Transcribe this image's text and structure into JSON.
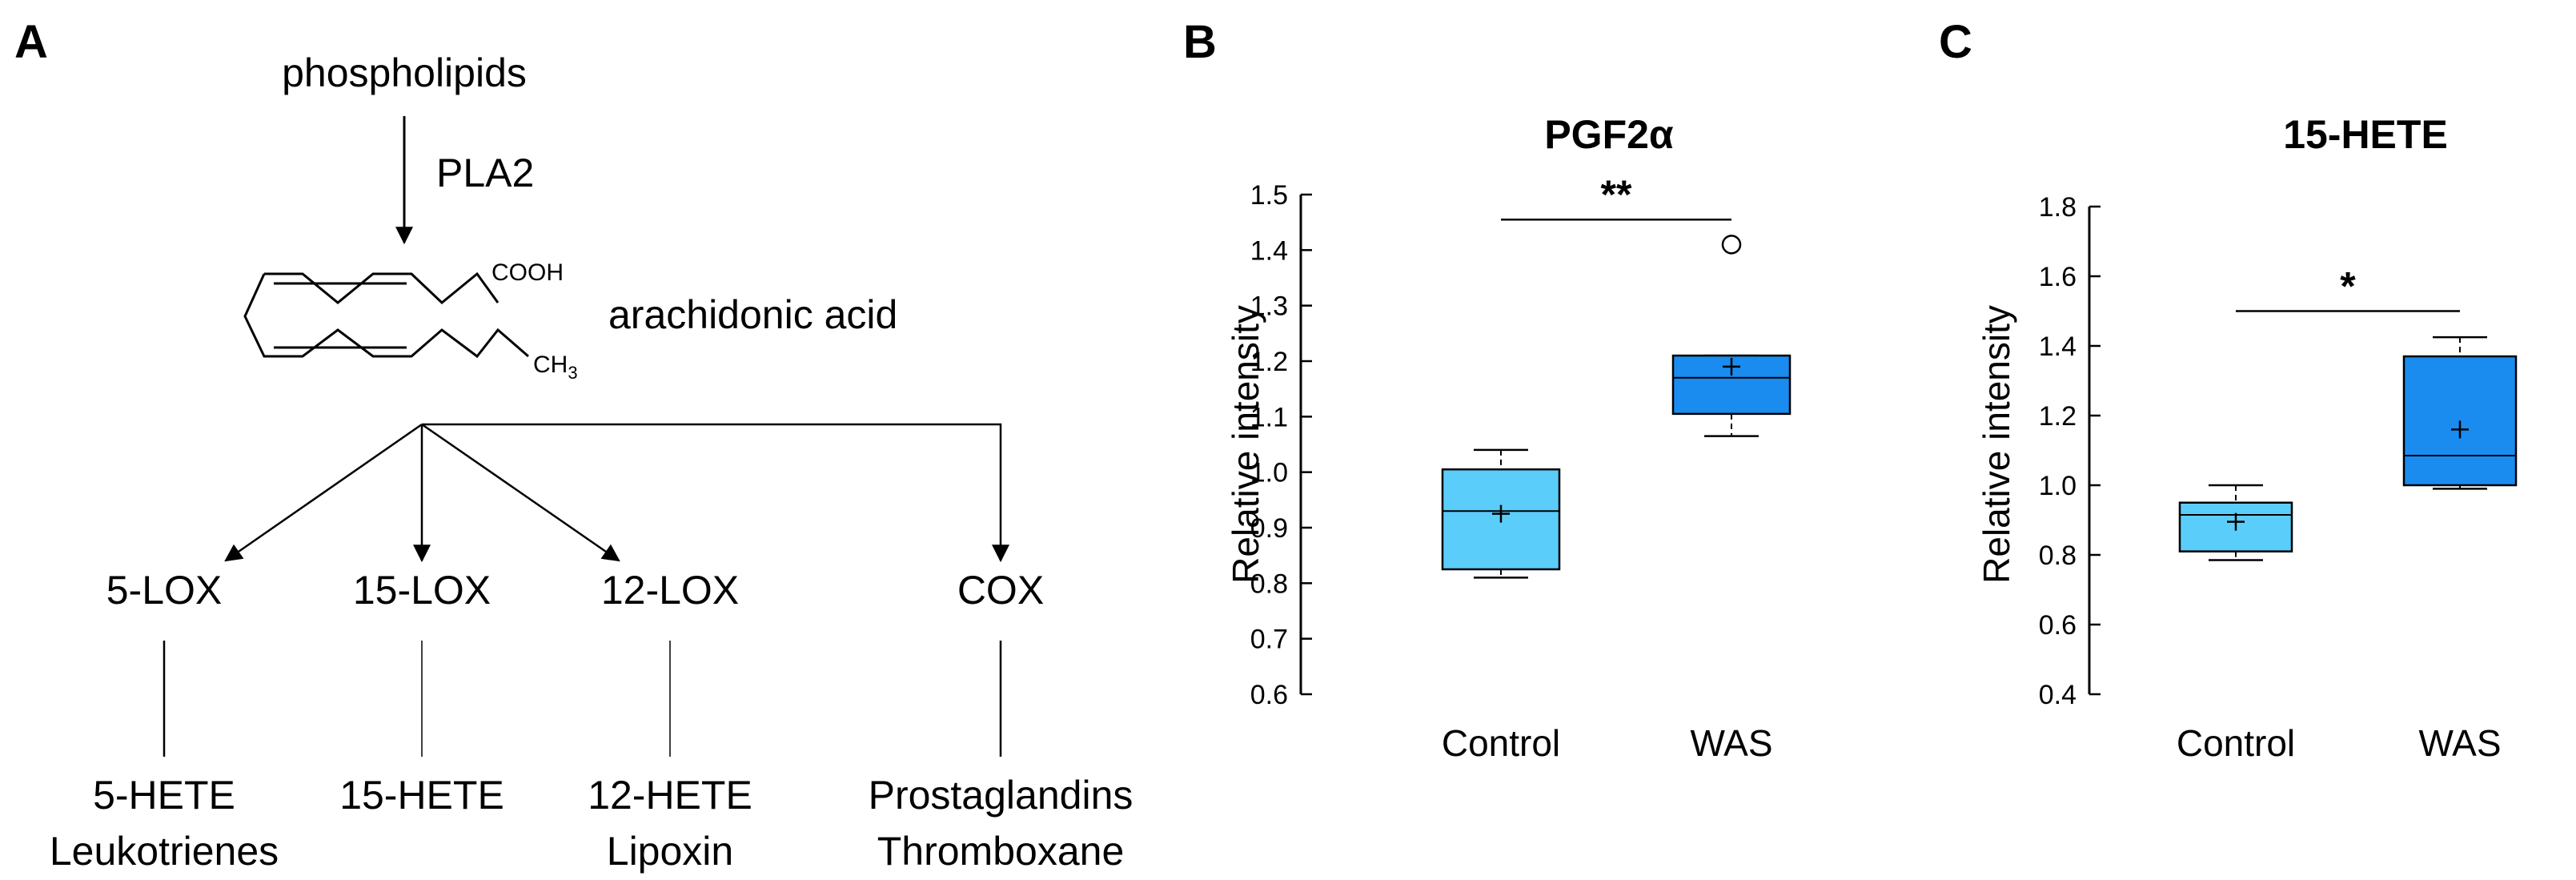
{
  "panel_labels": {
    "a": "A",
    "b": "B",
    "c": "C"
  },
  "diagram": {
    "precursor": "phospholipids",
    "enzyme": "PLA2",
    "substrate": "arachidonic acid",
    "carboxyl": "COOH",
    "methyl": "CH",
    "methyl_sub": "3",
    "branches": [
      {
        "enzyme": "5-LOX",
        "product_1": "5-HETE",
        "product_2": "Leukotrienes"
      },
      {
        "enzyme": "15-LOX",
        "product_1": "15-HETE",
        "product_2": ""
      },
      {
        "enzyme": "12-LOX",
        "product_1": "12-HETE",
        "product_2": "Lipoxin"
      },
      {
        "enzyme": "COX",
        "product_1": "Prostaglandins",
        "product_2": "Thromboxane"
      }
    ]
  },
  "colors": {
    "control_fill": "#5bcdfa",
    "was_fill": "#1a8cf0",
    "stroke": "#000000"
  },
  "chart_data": [
    {
      "type": "box",
      "title": "PGF2α",
      "ylabel": "Relative intensity",
      "ylim": [
        0.6,
        1.5
      ],
      "yticks": [
        "0.6",
        "0.7",
        "0.8",
        "0.9",
        "1.0",
        "1.1",
        "1.2",
        "1.3",
        "1.4",
        "1.5"
      ],
      "categories": [
        "Control",
        "WAS"
      ],
      "boxes": [
        {
          "name": "Control",
          "whisker_low": 0.81,
          "q1": 0.825,
          "median": 0.93,
          "q3": 1.005,
          "whisker_high": 1.04,
          "mean": 0.925,
          "outliers": []
        },
        {
          "name": "WAS",
          "whisker_low": 1.065,
          "q1": 1.105,
          "median": 1.17,
          "q3": 1.21,
          "whisker_high": 1.21,
          "mean": 1.19,
          "outliers": [
            1.41
          ]
        }
      ],
      "significance": {
        "label": "**",
        "from": "Control",
        "to": "WAS",
        "y": 1.455
      }
    },
    {
      "type": "box",
      "title": "15-HETE",
      "ylabel": "Relative intensity",
      "ylim": [
        0.4,
        1.8
      ],
      "yticks": [
        "0.4",
        "0.6",
        "0.8",
        "1.0",
        "1.2",
        "1.4",
        "1.6",
        "1.8"
      ],
      "categories": [
        "Control",
        "WAS"
      ],
      "boxes": [
        {
          "name": "Control",
          "whisker_low": 0.785,
          "q1": 0.81,
          "median": 0.915,
          "q3": 0.95,
          "whisker_high": 1.0,
          "mean": 0.895,
          "outliers": []
        },
        {
          "name": "WAS",
          "whisker_low": 0.99,
          "q1": 1.0,
          "median": 1.085,
          "q3": 1.37,
          "whisker_high": 1.425,
          "mean": 1.16,
          "outliers": []
        }
      ],
      "significance": {
        "label": "*",
        "from": "Control",
        "to": "WAS",
        "y": 1.5
      }
    }
  ]
}
